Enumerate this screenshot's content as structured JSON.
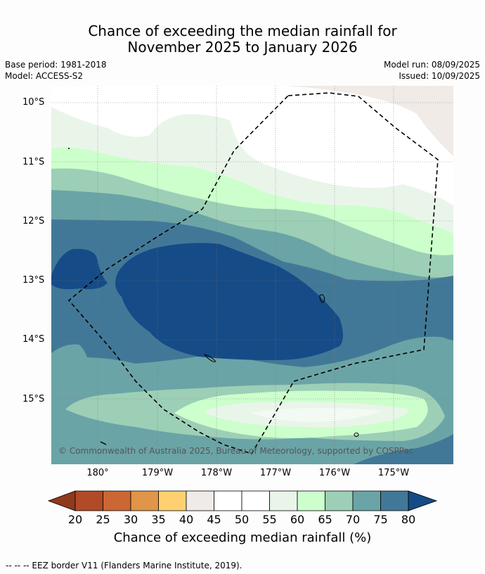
{
  "title_line1": "Chance of exceeding the median rainfall for",
  "title_line2": "November 2025 to January 2026",
  "base_period": "Base period: 1981-2018",
  "model": "Model: ACCESS-S2",
  "model_run": "Model run: 08/09/2025",
  "issued": "Issued: 10/09/2025",
  "lat_ticks": [
    "10°S",
    "11°S",
    "12°S",
    "13°S",
    "14°S",
    "15°S"
  ],
  "lon_ticks": [
    "180°",
    "179°W",
    "178°W",
    "177°W",
    "176°W",
    "175°W"
  ],
  "copyright": "© Commonwealth of Australia 2025, Bureau of Meteorology, supported by COSPPac",
  "colorbar": {
    "labels": [
      "20",
      "25",
      "30",
      "35",
      "40",
      "45",
      "50",
      "55",
      "60",
      "65",
      "70",
      "75",
      "80"
    ],
    "colors": [
      "#8f3a1c",
      "#b14a26",
      "#cc6633",
      "#e09548",
      "#ffd070",
      "#f0ebe6",
      "#ffffff",
      "#ffffff",
      "#eaf5ea",
      "#ccffcc",
      "#9ccfb6",
      "#6ba4a6",
      "#427897",
      "#154b87"
    ],
    "title": "Chance of exceeding median rainfall (%)"
  },
  "legend_footer": "--  --  -- EEZ border V11 (Flanders Marine Institute, 2019)."
}
